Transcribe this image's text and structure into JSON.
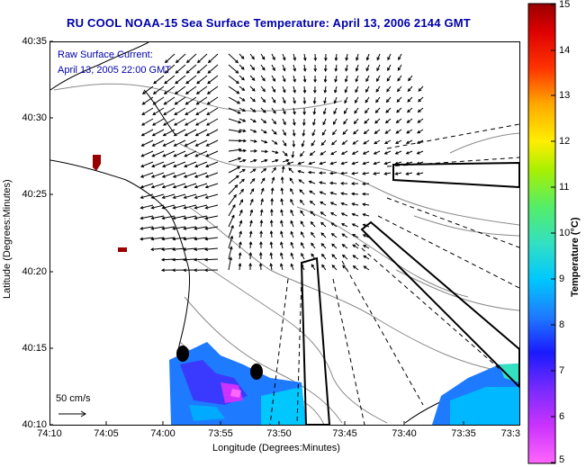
{
  "title": "RU COOL  NOAA-15  Sea Surface Temperature:  April 13, 2006 2144 GMT",
  "current_label": "Raw Surface Current:",
  "current_date": "April 13, 2005 22:00 GMT",
  "scale_label": "50 cm/s",
  "xlabel": "Longitude (Degrees:Minutes)",
  "ylabel": "Latitude (Degrees:Minutes)",
  "xticks": [
    "74:10",
    "74:05",
    "74:00",
    "73:55",
    "73:50",
    "73:45",
    "73:40",
    "73:35",
    "73:3"
  ],
  "yticks": [
    "40:35",
    "40:30",
    "40:25",
    "40:20",
    "40:15",
    "40:10"
  ],
  "colorbar": {
    "title": "Temperature (°C)",
    "ticks": [
      "15",
      "14",
      "13",
      "12",
      "11",
      "10",
      "9",
      "8",
      "7",
      "6",
      "5"
    ],
    "range": [
      5,
      15
    ]
  },
  "colors": {
    "title": "#0000aa",
    "land_outline": "#000000",
    "contour": "#808080"
  }
}
